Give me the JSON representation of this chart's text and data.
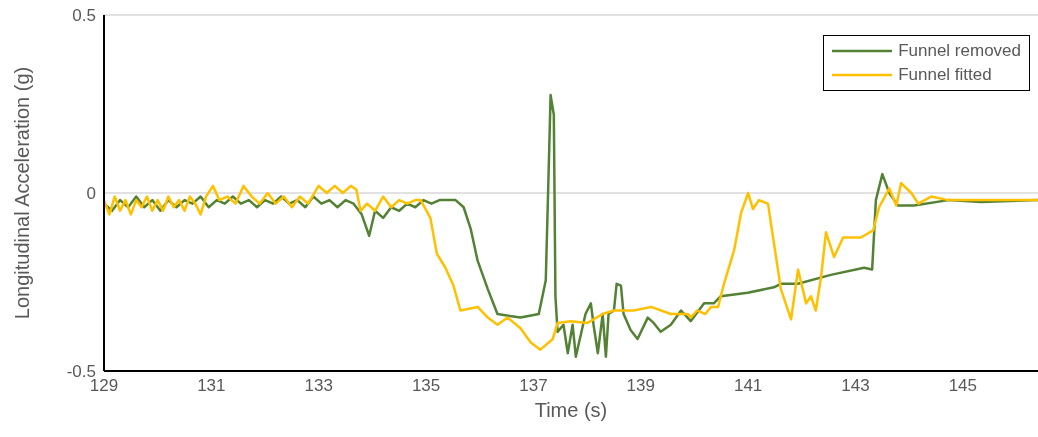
{
  "chart_data": {
    "type": "line",
    "xlabel": "Time (s)",
    "ylabel": "Longitudinal Acceleration (g)",
    "xlim": [
      129,
      146.4
    ],
    "xticks": [
      129,
      131,
      133,
      135,
      137,
      139,
      141,
      143,
      145
    ],
    "ylim": [
      -0.5,
      0.5
    ],
    "yticks": [
      -0.5,
      0,
      0.5
    ],
    "grid": "y",
    "legend": "top right",
    "marker": "none",
    "line_style": "solid",
    "series": [
      {
        "name": "Funnel removed",
        "color": "#548235",
        "x": [
          129.0,
          129.15,
          129.3,
          129.45,
          129.6,
          129.75,
          129.9,
          130.05,
          130.2,
          130.35,
          130.5,
          130.65,
          130.8,
          130.95,
          131.1,
          131.25,
          131.4,
          131.55,
          131.7,
          131.85,
          132.0,
          132.15,
          132.3,
          132.45,
          132.6,
          132.75,
          132.9,
          133.05,
          133.2,
          133.35,
          133.5,
          133.65,
          133.8,
          133.94,
          134.05,
          134.2,
          134.35,
          134.5,
          134.65,
          134.8,
          134.95,
          135.1,
          135.25,
          135.4,
          135.55,
          135.7,
          135.83,
          135.96,
          136.15,
          136.33,
          136.76,
          137.1,
          137.23,
          137.28,
          137.32,
          137.38,
          137.41,
          137.45,
          137.56,
          137.64,
          137.73,
          137.79,
          137.97,
          138.07,
          138.12,
          138.2,
          138.29,
          138.35,
          138.4,
          138.5,
          138.55,
          138.63,
          138.68,
          138.81,
          138.94,
          139.13,
          139.24,
          139.37,
          139.56,
          139.75,
          139.93,
          140.18,
          140.36,
          140.49,
          140.99,
          141.48,
          141.61,
          141.93,
          142.54,
          143.16,
          143.31,
          143.38,
          143.5,
          143.63,
          143.79,
          144.09,
          144.73,
          145.34,
          146.4
        ],
        "values": [
          -0.03,
          -0.05,
          -0.02,
          -0.04,
          -0.01,
          -0.04,
          -0.02,
          -0.05,
          -0.02,
          -0.04,
          -0.02,
          -0.03,
          -0.01,
          -0.04,
          -0.02,
          -0.03,
          -0.01,
          -0.03,
          -0.02,
          -0.04,
          -0.02,
          -0.03,
          -0.01,
          -0.03,
          -0.02,
          -0.04,
          -0.01,
          -0.03,
          -0.02,
          -0.04,
          -0.02,
          -0.03,
          -0.06,
          -0.12,
          -0.05,
          -0.07,
          -0.04,
          -0.05,
          -0.03,
          -0.04,
          -0.02,
          -0.03,
          -0.02,
          -0.02,
          -0.02,
          -0.04,
          -0.1,
          -0.19,
          -0.27,
          -0.34,
          -0.35,
          -0.34,
          -0.245,
          0.04,
          0.275,
          0.22,
          -0.29,
          -0.39,
          -0.37,
          -0.45,
          -0.37,
          -0.46,
          -0.34,
          -0.31,
          -0.37,
          -0.45,
          -0.34,
          -0.46,
          -0.34,
          -0.33,
          -0.255,
          -0.26,
          -0.34,
          -0.385,
          -0.41,
          -0.35,
          -0.365,
          -0.39,
          -0.37,
          -0.33,
          -0.36,
          -0.31,
          -0.31,
          -0.29,
          -0.28,
          -0.265,
          -0.255,
          -0.255,
          -0.23,
          -0.21,
          -0.215,
          -0.02,
          0.053,
          0.0,
          -0.035,
          -0.035,
          -0.02,
          -0.025,
          -0.02
        ]
      },
      {
        "name": "Funnel fitted",
        "color": "#ffc000",
        "x": [
          129.0,
          129.1,
          129.2,
          129.3,
          129.4,
          129.5,
          129.6,
          129.7,
          129.8,
          129.9,
          130.0,
          130.1,
          130.2,
          130.3,
          130.4,
          130.5,
          130.6,
          130.7,
          130.8,
          130.9,
          131.03,
          131.15,
          131.3,
          131.45,
          131.6,
          131.75,
          131.9,
          132.05,
          132.2,
          132.35,
          132.5,
          132.65,
          132.8,
          133.0,
          133.15,
          133.3,
          133.45,
          133.6,
          133.7,
          133.78,
          133.9,
          134.05,
          134.2,
          134.35,
          134.5,
          134.65,
          134.8,
          134.9,
          135.08,
          135.2,
          135.36,
          135.51,
          135.64,
          135.96,
          136.15,
          136.33,
          136.52,
          136.76,
          136.95,
          137.13,
          137.36,
          137.45,
          137.69,
          138.01,
          138.29,
          138.5,
          138.87,
          139.19,
          139.56,
          139.88,
          139.93,
          140.05,
          140.2,
          140.31,
          140.44,
          140.55,
          140.74,
          140.87,
          141.0,
          141.09,
          141.2,
          141.37,
          141.46,
          141.61,
          141.8,
          141.93,
          142.08,
          142.17,
          142.26,
          142.36,
          142.45,
          142.6,
          142.77,
          142.92,
          143.1,
          143.33,
          143.44,
          143.63,
          143.76,
          143.85,
          144.04,
          144.17,
          144.41,
          144.73,
          145.34,
          146.4
        ],
        "values": [
          -0.02,
          -0.06,
          -0.01,
          -0.05,
          -0.02,
          -0.06,
          -0.02,
          -0.04,
          -0.01,
          -0.05,
          -0.02,
          -0.05,
          -0.01,
          -0.04,
          -0.02,
          -0.05,
          -0.01,
          -0.03,
          -0.06,
          -0.01,
          0.02,
          -0.02,
          -0.01,
          -0.03,
          0.02,
          -0.01,
          -0.03,
          0.0,
          -0.03,
          -0.01,
          -0.04,
          -0.01,
          -0.03,
          0.02,
          0.0,
          0.02,
          0.0,
          0.02,
          0.01,
          -0.05,
          -0.03,
          -0.05,
          -0.01,
          -0.04,
          -0.02,
          -0.03,
          -0.02,
          -0.02,
          -0.07,
          -0.17,
          -0.21,
          -0.26,
          -0.33,
          -0.32,
          -0.35,
          -0.37,
          -0.35,
          -0.38,
          -0.42,
          -0.44,
          -0.41,
          -0.365,
          -0.36,
          -0.365,
          -0.34,
          -0.33,
          -0.33,
          -0.32,
          -0.34,
          -0.34,
          -0.35,
          -0.33,
          -0.34,
          -0.32,
          -0.32,
          -0.255,
          -0.16,
          -0.055,
          0.0,
          -0.045,
          -0.02,
          -0.03,
          -0.12,
          -0.27,
          -0.355,
          -0.215,
          -0.31,
          -0.29,
          -0.33,
          -0.235,
          -0.11,
          -0.18,
          -0.125,
          -0.125,
          -0.125,
          -0.105,
          -0.04,
          0.013,
          -0.035,
          0.028,
          0.0,
          -0.03,
          -0.01,
          -0.02,
          -0.02,
          -0.02
        ]
      }
    ]
  }
}
